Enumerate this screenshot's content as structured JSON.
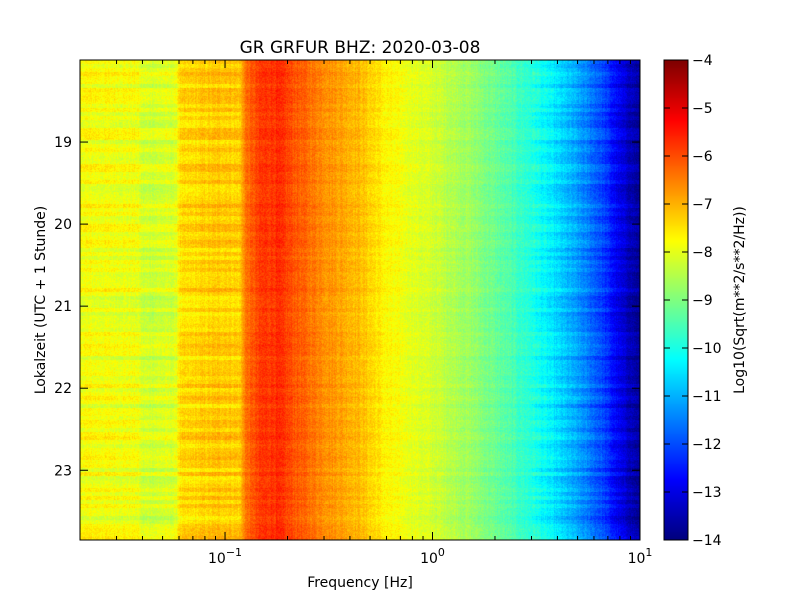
{
  "chart_data": {
    "type": "heatmap",
    "title": "GR GRFUR BHZ: 2020-03-08",
    "xlabel": "Frequency [Hz]",
    "ylabel": "Lokalzeit (UTC + 1 Stunde)",
    "x_scale": "log",
    "xlim": [
      0.02,
      10
    ],
    "ylim": [
      18.0,
      23.85
    ],
    "y_direction": "downward",
    "x_ticks": [
      {
        "value": 0.1,
        "base": "10",
        "exp": "−1"
      },
      {
        "value": 1,
        "base": "10",
        "exp": "0"
      },
      {
        "value": 10,
        "base": "10",
        "exp": "1"
      }
    ],
    "y_ticks": [
      {
        "value": 19,
        "label": "19"
      },
      {
        "value": 20,
        "label": "20"
      },
      {
        "value": 21,
        "label": "21"
      },
      {
        "value": 22,
        "label": "22"
      },
      {
        "value": 23,
        "label": "23"
      }
    ],
    "colorbar": {
      "label": "Log10(Sqrt(m**2/s**2/Hz))",
      "colormap": "jet",
      "range": [
        -14,
        -4
      ],
      "ticks": [
        {
          "value": -4,
          "label": "−4"
        },
        {
          "value": -5,
          "label": "−5"
        },
        {
          "value": -6,
          "label": "−6"
        },
        {
          "value": -7,
          "label": "−7"
        },
        {
          "value": -8,
          "label": "−8"
        },
        {
          "value": -9,
          "label": "−9"
        },
        {
          "value": -10,
          "label": "−10"
        },
        {
          "value": -11,
          "label": "−11"
        },
        {
          "value": -12,
          "label": "−12"
        },
        {
          "value": -13,
          "label": "−13"
        },
        {
          "value": -14,
          "label": "−14"
        }
      ]
    },
    "spectrum_profile": [
      {
        "f": 0.02,
        "v": -7.8
      },
      {
        "f": 0.038,
        "v": -7.9
      },
      {
        "f": 0.04,
        "v": -8.2
      },
      {
        "f": 0.058,
        "v": -8.1
      },
      {
        "f": 0.06,
        "v": -7.5
      },
      {
        "f": 0.08,
        "v": -7.3
      },
      {
        "f": 0.1,
        "v": -7.2
      },
      {
        "f": 0.118,
        "v": -7.3
      },
      {
        "f": 0.125,
        "v": -6.4
      },
      {
        "f": 0.15,
        "v": -5.8
      },
      {
        "f": 0.18,
        "v": -5.7
      },
      {
        "f": 0.22,
        "v": -6.1
      },
      {
        "f": 0.3,
        "v": -6.6
      },
      {
        "f": 0.45,
        "v": -7.1
      },
      {
        "f": 0.6,
        "v": -7.7
      },
      {
        "f": 0.8,
        "v": -8.0
      },
      {
        "f": 1.0,
        "v": -8.2
      },
      {
        "f": 1.5,
        "v": -8.7
      },
      {
        "f": 2.0,
        "v": -9.2
      },
      {
        "f": 3.0,
        "v": -9.9
      },
      {
        "f": 4.0,
        "v": -10.6
      },
      {
        "f": 5.0,
        "v": -11.2
      },
      {
        "f": 6.5,
        "v": -12.0
      },
      {
        "f": 8.0,
        "v": -13.0
      },
      {
        "f": 10.0,
        "v": -13.8
      }
    ]
  }
}
